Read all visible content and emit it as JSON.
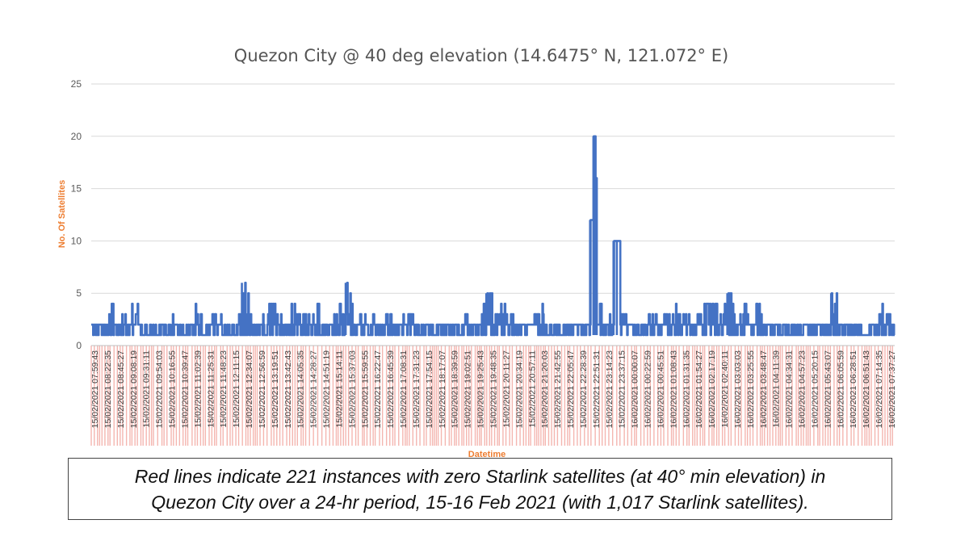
{
  "chart_data": {
    "type": "line",
    "title": "Quezon City @ 40 deg elevation (14.6475° N, 121.072° E)",
    "xlabel": "Datetime",
    "ylabel": "No. Of Satellites",
    "ylim": [
      0,
      25
    ],
    "yticks": [
      "0",
      "5",
      "10",
      "15",
      "20",
      "25"
    ],
    "grid": true,
    "series_color": "#4472C4",
    "zero_marker_color": "#F4B6B0",
    "axis_label_color": "#ED7D31",
    "x_tick_labels": [
      "15/02/2021 07:59:43",
      "15/02/2021 08:22:35",
      "15/02/2021 08:45:27",
      "15/02/2021 09:08:19",
      "15/02/2021 09:31:11",
      "15/02/2021 09:54:03",
      "15/02/2021 10:16:55",
      "15/02/2021 10:39:47",
      "15/02/2021 11:02:39",
      "15/02/2021 11:25:31",
      "15/02/2021 11:48:23",
      "15/02/2021 12:11:15",
      "15/02/2021 12:34:07",
      "15/02/2021 12:56:59",
      "15/02/2021 13:19:51",
      "15/02/2021 13:42:43",
      "15/02/2021 14:05:35",
      "15/02/2021 14:28:27",
      "15/02/2021 14:51:19",
      "15/02/2021 15:14:11",
      "15/02/2021 15:37:03",
      "15/02/2021 15:59:55",
      "15/02/2021 16:22:47",
      "15/02/2021 16:45:39",
      "15/02/2021 17:08:31",
      "15/02/2021 17:31:23",
      "15/02/2021 17:54:15",
      "15/02/2021 18:17:07",
      "15/02/2021 18:39:59",
      "15/02/2021 19:02:51",
      "15/02/2021 19:25:43",
      "15/02/2021 19:48:35",
      "15/02/2021 20:11:27",
      "15/02/2021 20:34:19",
      "15/02/2021 20:57:11",
      "15/02/2021 21:20:03",
      "15/02/2021 21:42:55",
      "15/02/2021 22:05:47",
      "15/02/2021 22:28:39",
      "15/02/2021 22:51:31",
      "15/02/2021 23:14:23",
      "15/02/2021 23:37:15",
      "16/02/2021 00:00:07",
      "16/02/2021 00:22:59",
      "16/02/2021 00:45:51",
      "16/02/2021 01:08:43",
      "16/02/2021 01:31:35",
      "16/02/2021 01:54:27",
      "16/02/2021 02:17:19",
      "16/02/2021 02:40:11",
      "16/02/2021 03:03:03",
      "16/02/2021 03:25:55",
      "16/02/2021 03:48:47",
      "16/02/2021 04:11:39",
      "16/02/2021 04:34:31",
      "16/02/2021 04:57:23",
      "16/02/2021 05:20:15",
      "16/02/2021 05:43:07",
      "16/02/2021 06:05:59",
      "16/02/2021 06:28:51",
      "16/02/2021 06:51:43",
      "16/02/2021 07:14:35",
      "16/02/2021 07:37:27"
    ],
    "x_range_hours": [
      0,
      24
    ],
    "series_points": [
      [
        0,
        2
      ],
      [
        0.2,
        3
      ],
      [
        0.4,
        2
      ],
      [
        0.5,
        4
      ],
      [
        0.7,
        2
      ],
      [
        0.9,
        3
      ],
      [
        1.1,
        2
      ],
      [
        1.2,
        4
      ],
      [
        1.4,
        2
      ],
      [
        1.6,
        3
      ],
      [
        1.8,
        1
      ],
      [
        2.0,
        2
      ],
      [
        2.3,
        3
      ],
      [
        2.6,
        1
      ],
      [
        2.9,
        2
      ],
      [
        3.1,
        4
      ],
      [
        3.3,
        2
      ],
      [
        3.6,
        3
      ],
      [
        3.9,
        1
      ],
      [
        4.2,
        2
      ],
      [
        4.4,
        3
      ],
      [
        4.5,
        6
      ],
      [
        4.7,
        3
      ],
      [
        4.9,
        2
      ],
      [
        5.1,
        3
      ],
      [
        5.3,
        4
      ],
      [
        5.5,
        3
      ],
      [
        5.7,
        2
      ],
      [
        5.9,
        4
      ],
      [
        6.1,
        3
      ],
      [
        6.3,
        4
      ],
      [
        6.5,
        3
      ],
      [
        6.7,
        4
      ],
      [
        6.9,
        2
      ],
      [
        7.1,
        3
      ],
      [
        7.3,
        4
      ],
      [
        7.5,
        3
      ],
      [
        7.6,
        6
      ],
      [
        7.8,
        2
      ],
      [
        8.0,
        3
      ],
      [
        8.2,
        2
      ],
      [
        8.4,
        3
      ],
      [
        8.6,
        2
      ],
      [
        8.8,
        3
      ],
      [
        9.0,
        2
      ],
      [
        9.3,
        3
      ],
      [
        9.6,
        2
      ],
      [
        9.9,
        2
      ],
      [
        10.2,
        2
      ],
      [
        10.5,
        2
      ],
      [
        10.8,
        2
      ],
      [
        11.1,
        3
      ],
      [
        11.3,
        2
      ],
      [
        11.5,
        3
      ],
      [
        11.7,
        4
      ],
      [
        11.8,
        5
      ],
      [
        12.0,
        3
      ],
      [
        12.2,
        4
      ],
      [
        12.4,
        3
      ],
      [
        12.6,
        2
      ],
      [
        12.8,
        3
      ],
      [
        13.0,
        2
      ],
      [
        13.2,
        3
      ],
      [
        13.4,
        4
      ],
      [
        13.6,
        2
      ],
      [
        13.8,
        2
      ],
      [
        14.0,
        2
      ],
      [
        14.2,
        2
      ],
      [
        14.4,
        2
      ],
      [
        14.6,
        2
      ],
      [
        14.8,
        2
      ],
      [
        14.9,
        12
      ],
      [
        15.0,
        20
      ],
      [
        15.05,
        16
      ],
      [
        15.1,
        5
      ],
      [
        15.3,
        2
      ],
      [
        15.45,
        3
      ],
      [
        15.6,
        10
      ],
      [
        15.7,
        10
      ],
      [
        15.8,
        3
      ],
      [
        16.0,
        2
      ],
      [
        16.3,
        2
      ],
      [
        16.6,
        3
      ],
      [
        16.9,
        2
      ],
      [
        17.1,
        3
      ],
      [
        17.3,
        4
      ],
      [
        17.5,
        3
      ],
      [
        17.7,
        3
      ],
      [
        17.9,
        2
      ],
      [
        18.1,
        3
      ],
      [
        18.3,
        4
      ],
      [
        18.5,
        4
      ],
      [
        18.7,
        3
      ],
      [
        18.9,
        4
      ],
      [
        19.0,
        5
      ],
      [
        19.2,
        3
      ],
      [
        19.4,
        4
      ],
      [
        19.6,
        3
      ],
      [
        19.8,
        4
      ],
      [
        20.0,
        3
      ],
      [
        20.2,
        2
      ],
      [
        20.4,
        2
      ],
      [
        20.6,
        2
      ],
      [
        20.8,
        2
      ],
      [
        21.0,
        2
      ],
      [
        21.2,
        2
      ],
      [
        21.4,
        3
      ],
      [
        21.6,
        2
      ],
      [
        21.8,
        2
      ],
      [
        22.0,
        3
      ],
      [
        22.1,
        5
      ],
      [
        22.3,
        2
      ],
      [
        22.5,
        2
      ],
      [
        22.7,
        2
      ],
      [
        22.9,
        2
      ],
      [
        23.1,
        2
      ],
      [
        23.3,
        2
      ],
      [
        23.5,
        3
      ],
      [
        23.6,
        4
      ],
      [
        23.7,
        3
      ],
      [
        23.8,
        3
      ],
      [
        23.9,
        3
      ],
      [
        24.0,
        2
      ]
    ],
    "low_band": [
      1,
      2
    ]
  },
  "caption": {
    "line1": "Red lines indicate 221 instances with zero Starlink satellites (at 40° min elevation) in",
    "line2": "Quezon City over a 24-hr period, 15-16 Feb 2021 (with 1,017 Starlink satellites)."
  }
}
